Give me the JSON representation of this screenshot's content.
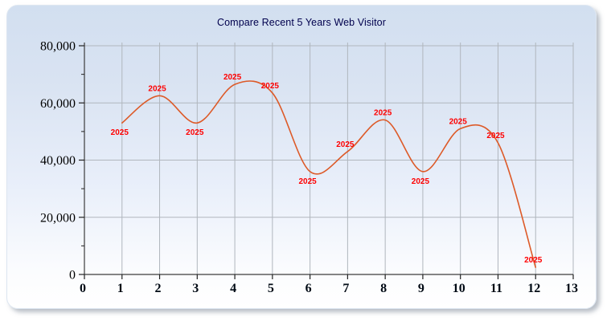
{
  "title": "Compare Recent 5 Years Web Visitor",
  "chart_data": {
    "type": "line",
    "title": "Compare Recent 5 Years Web Visitor",
    "x": [
      1,
      2,
      3,
      4,
      5,
      6,
      7,
      8,
      9,
      10,
      11,
      12
    ],
    "series": [
      {
        "name": "2025",
        "values": [
          53000,
          62500,
          53000,
          66500,
          63500,
          36000,
          43000,
          54000,
          36000,
          51000,
          46000,
          2500
        ],
        "color": "#dd5a28",
        "point_label": "2025",
        "label_sides": [
          "below",
          "above",
          "below",
          "above",
          "above",
          "below",
          "above",
          "above",
          "below",
          "above",
          "above",
          "above"
        ]
      }
    ],
    "xlim": [
      0,
      13
    ],
    "ylim": [
      0,
      80000
    ],
    "x_ticks": [
      0,
      1,
      2,
      3,
      4,
      5,
      6,
      7,
      8,
      9,
      10,
      11,
      12,
      13
    ],
    "y_ticks": [
      0,
      20000,
      40000,
      60000,
      80000
    ],
    "y_tick_labels": [
      "0",
      "20,000",
      "40,000",
      "60,000",
      "80,000"
    ],
    "y_minor_ticks": [
      10000,
      30000,
      50000,
      70000
    ],
    "grid": true,
    "legend": "none",
    "smooth": true
  },
  "colors": {
    "grid": "#b0b6bd",
    "axis": "#3c3c3c",
    "tick": "#222222",
    "title": "#00004d",
    "line": "#dd5a28",
    "point_label": "#ff0000"
  }
}
